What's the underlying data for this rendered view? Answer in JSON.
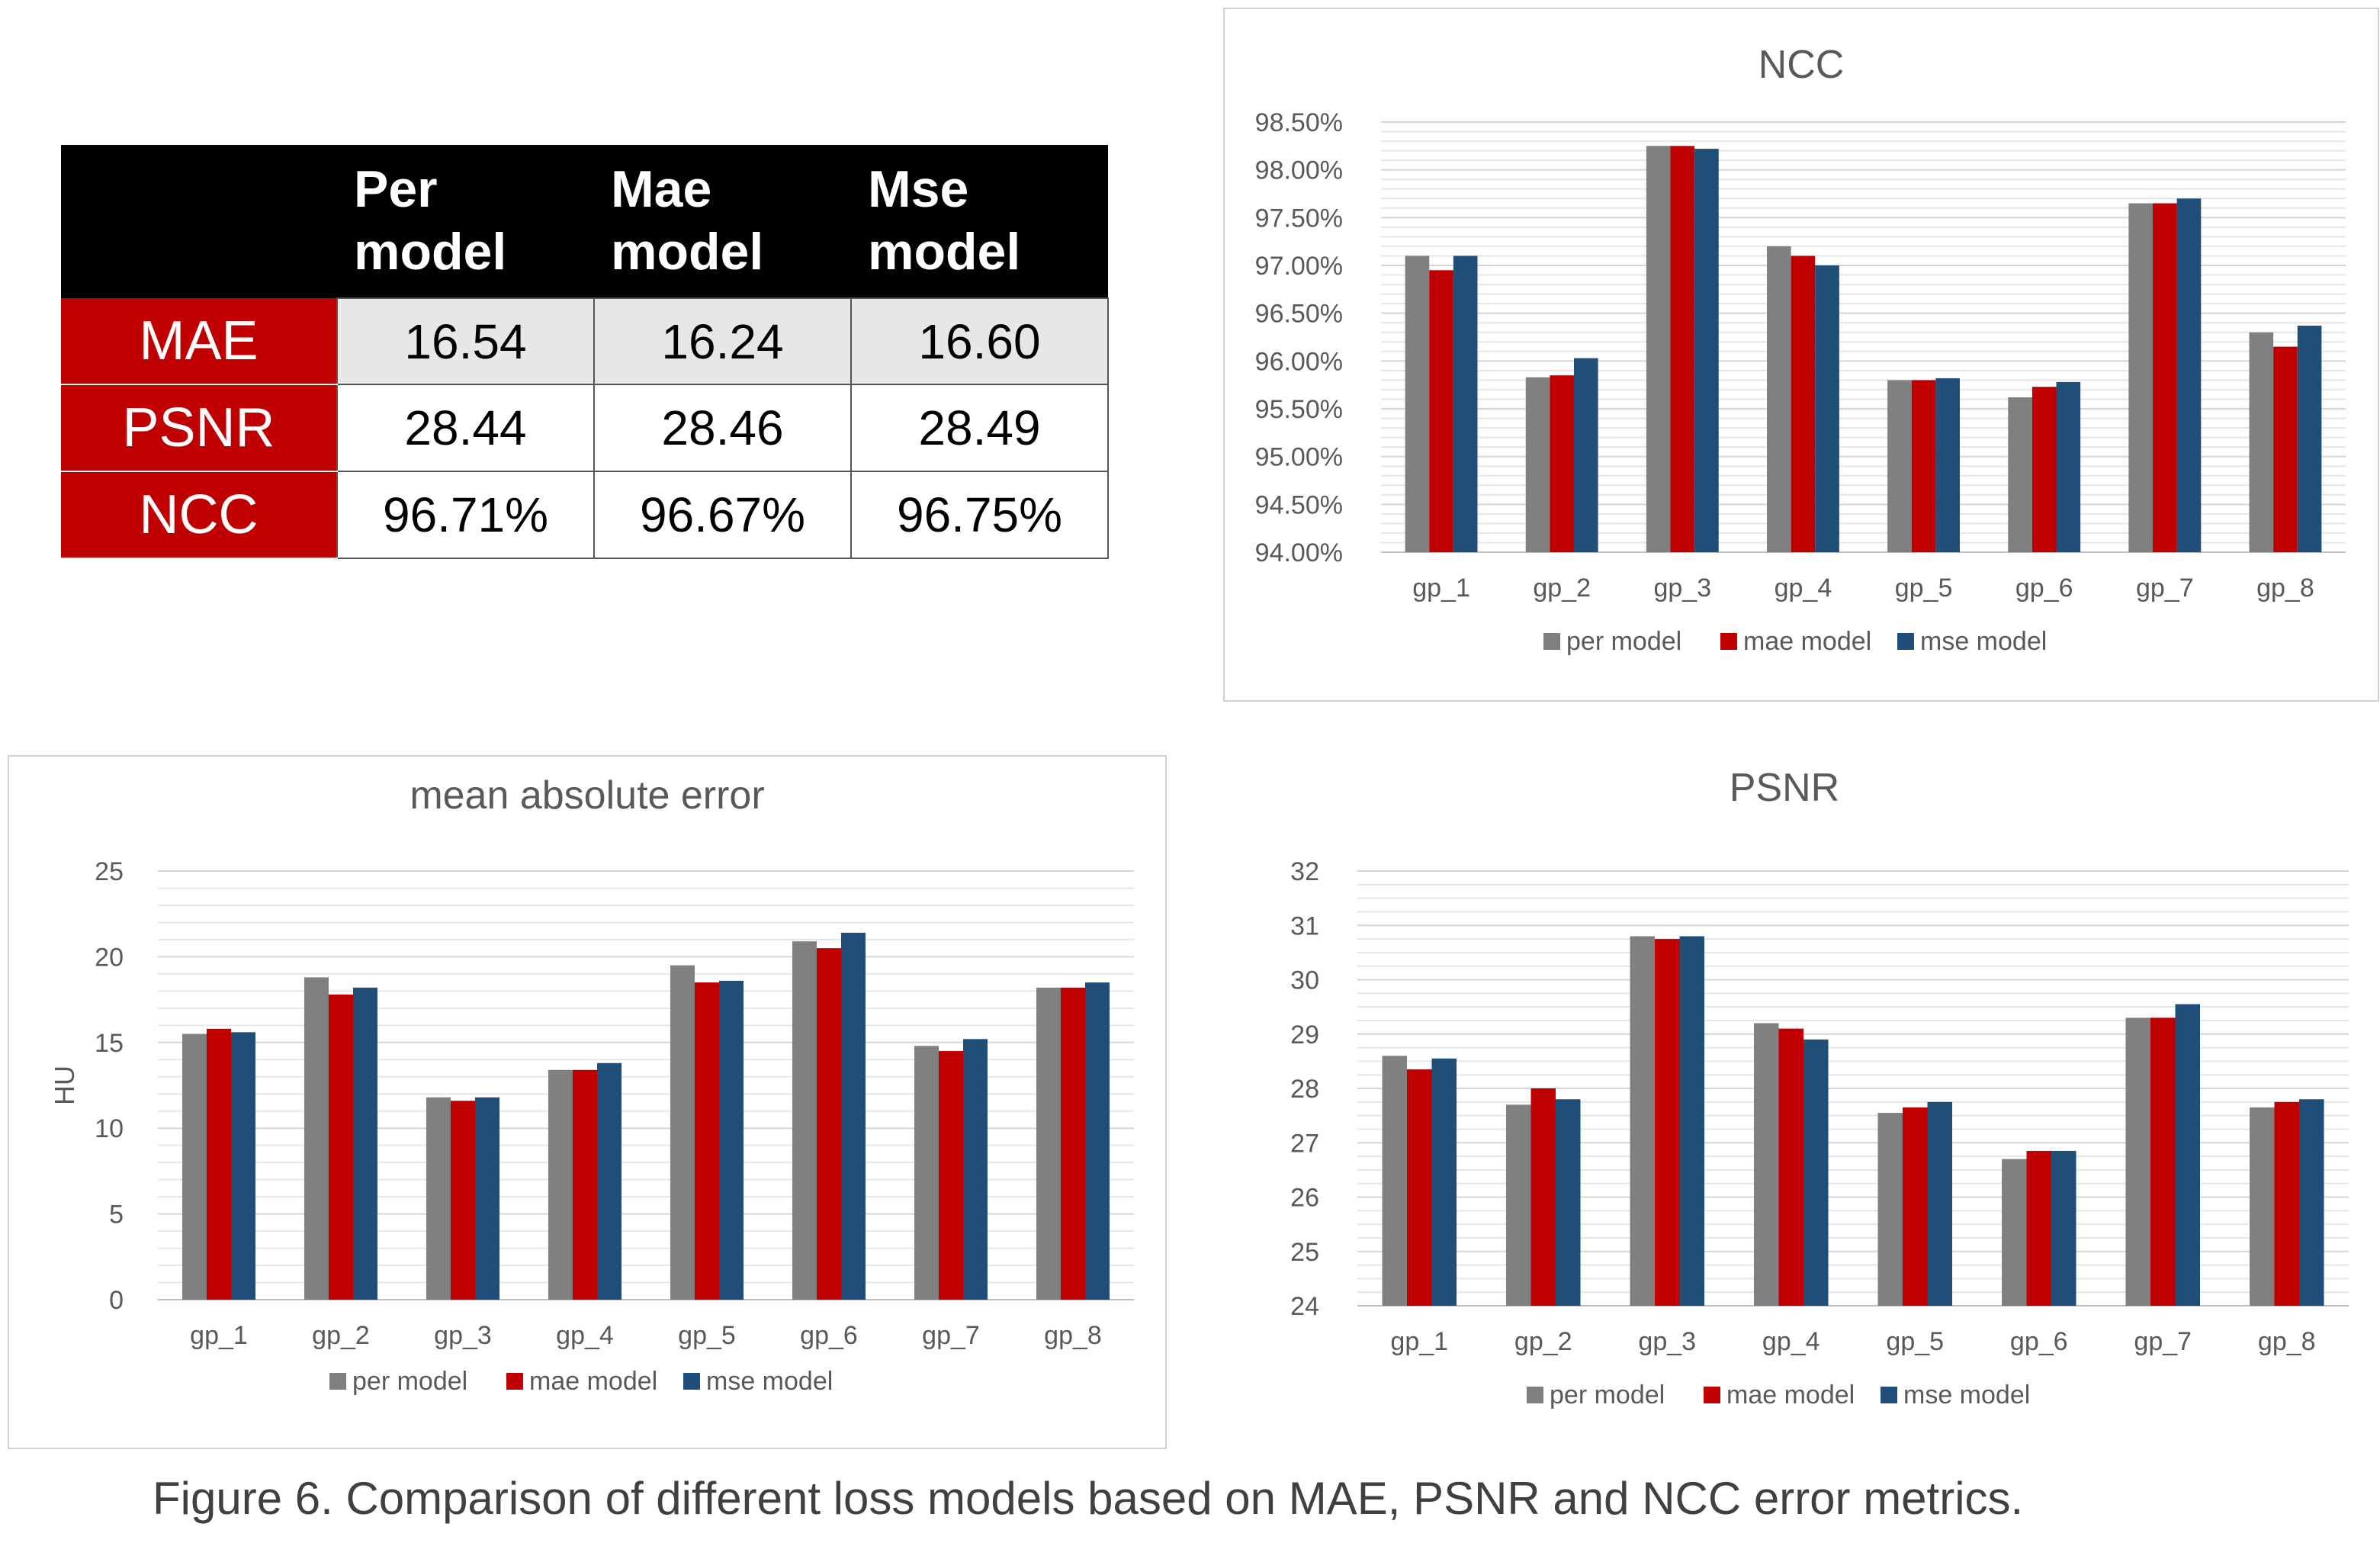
{
  "table": {
    "headers": [
      "",
      "Per\nmodel",
      "Mae\nmodel",
      "Mse\nmodel"
    ],
    "rows": [
      {
        "label": "MAE",
        "values": [
          "16.54",
          "16.24",
          "16.60"
        ]
      },
      {
        "label": "PSNR",
        "values": [
          "28.44",
          "28.46",
          "28.49"
        ]
      },
      {
        "label": "NCC",
        "values": [
          "96.71%",
          "96.67%",
          "96.75%"
        ]
      }
    ]
  },
  "caption": "Figure 6. Comparison of different loss models based on MAE, PSNR and NCC error metrics.",
  "colors": {
    "per": "#808080",
    "mae": "#c00000",
    "mse": "#1f4e79"
  },
  "chart_data": [
    {
      "id": "ncc",
      "type": "bar",
      "title": "NCC",
      "xlabel": "",
      "ylabel": "",
      "categories": [
        "gp_1",
        "gp_2",
        "gp_3",
        "gp_4",
        "gp_5",
        "gp_6",
        "gp_7",
        "gp_8"
      ],
      "series": [
        {
          "name": "per model",
          "values": [
            97.1,
            95.83,
            98.25,
            97.2,
            95.8,
            95.62,
            97.65,
            96.3
          ]
        },
        {
          "name": "mae model",
          "values": [
            96.95,
            95.85,
            98.25,
            97.1,
            95.8,
            95.73,
            97.65,
            96.15
          ]
        },
        {
          "name": "mse model",
          "values": [
            97.1,
            96.03,
            98.22,
            97.0,
            95.82,
            95.78,
            97.7,
            96.37
          ]
        }
      ],
      "ylim": [
        94,
        98.5
      ],
      "yticks": [
        94,
        94.5,
        95,
        95.5,
        96,
        96.5,
        97,
        97.5,
        98,
        98.5
      ],
      "ytick_labels": [
        "94.00%",
        "94.50%",
        "95.00%",
        "95.50%",
        "96.00%",
        "96.50%",
        "97.00%",
        "97.50%",
        "98.00%",
        "98.50%"
      ],
      "minor_step": 0.1,
      "legend": "bottom",
      "grid": true
    },
    {
      "id": "mae",
      "type": "bar",
      "title": "mean absolute error",
      "xlabel": "",
      "ylabel": "HU",
      "categories": [
        "gp_1",
        "gp_2",
        "gp_3",
        "gp_4",
        "gp_5",
        "gp_6",
        "gp_7",
        "gp_8"
      ],
      "series": [
        {
          "name": "per model",
          "values": [
            15.5,
            18.8,
            11.8,
            13.4,
            19.5,
            20.9,
            14.8,
            18.2
          ]
        },
        {
          "name": "mae model",
          "values": [
            15.8,
            17.8,
            11.6,
            13.4,
            18.5,
            20.5,
            14.5,
            18.2
          ]
        },
        {
          "name": "mse model",
          "values": [
            15.6,
            18.2,
            11.8,
            13.8,
            18.6,
            21.4,
            15.2,
            18.5
          ]
        }
      ],
      "ylim": [
        0,
        25
      ],
      "yticks": [
        0,
        5,
        10,
        15,
        20,
        25
      ],
      "ytick_labels": [
        "0",
        "5",
        "10",
        "15",
        "20",
        "25"
      ],
      "minor_step": 1,
      "legend": "bottom",
      "grid": true
    },
    {
      "id": "psnr",
      "type": "bar",
      "title": "PSNR",
      "xlabel": "",
      "ylabel": "",
      "categories": [
        "gp_1",
        "gp_2",
        "gp_3",
        "gp_4",
        "gp_5",
        "gp_6",
        "gp_7",
        "gp_8"
      ],
      "series": [
        {
          "name": "per model",
          "values": [
            28.6,
            27.7,
            30.8,
            29.2,
            27.55,
            26.7,
            29.3,
            27.65
          ]
        },
        {
          "name": "mae model",
          "values": [
            28.35,
            28.0,
            30.75,
            29.1,
            27.65,
            26.85,
            29.3,
            27.75
          ]
        },
        {
          "name": "mse model",
          "values": [
            28.55,
            27.8,
            30.8,
            28.9,
            27.75,
            26.85,
            29.55,
            27.8
          ]
        }
      ],
      "ylim": [
        24,
        32
      ],
      "yticks": [
        24,
        25,
        26,
        27,
        28,
        29,
        30,
        31,
        32
      ],
      "ytick_labels": [
        "24",
        "25",
        "26",
        "27",
        "28",
        "29",
        "30",
        "31",
        "32"
      ],
      "minor_step": 0.25,
      "legend": "bottom",
      "grid": true
    }
  ]
}
